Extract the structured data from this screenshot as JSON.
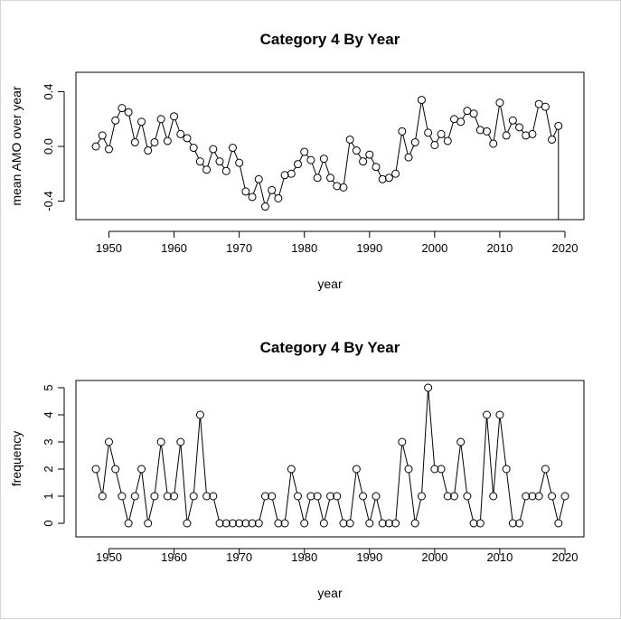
{
  "chart_data": [
    {
      "type": "line",
      "title": "Category 4 By Year",
      "xlabel": "year",
      "ylabel": "mean AMO over year",
      "xlim": [
        1948,
        2019
      ],
      "ylim": [
        -0.45,
        0.35
      ],
      "xticks": [
        "1950",
        "1960",
        "1970",
        "1980",
        "1990",
        "2000",
        "2010",
        "2020"
      ],
      "yticks": [
        "-0.4",
        "0.0",
        "0.4"
      ],
      "x": [
        1948,
        1949,
        1950,
        1951,
        1952,
        1953,
        1954,
        1955,
        1956,
        1957,
        1958,
        1959,
        1960,
        1961,
        1962,
        1963,
        1964,
        1965,
        1966,
        1967,
        1968,
        1969,
        1970,
        1971,
        1972,
        1973,
        1974,
        1975,
        1976,
        1977,
        1978,
        1979,
        1980,
        1981,
        1982,
        1983,
        1984,
        1985,
        1986,
        1987,
        1988,
        1989,
        1990,
        1991,
        1992,
        1993,
        1994,
        1995,
        1996,
        1997,
        1998,
        1999,
        2000,
        2001,
        2002,
        2003,
        2004,
        2005,
        2006,
        2007,
        2008,
        2009,
        2010,
        2011,
        2012,
        2013,
        2014,
        2015,
        2016,
        2017,
        2018,
        2019
      ],
      "y": [
        0.0,
        0.08,
        -0.02,
        0.19,
        0.28,
        0.25,
        0.03,
        0.18,
        -0.03,
        0.03,
        0.2,
        0.04,
        0.22,
        0.09,
        0.06,
        -0.01,
        -0.11,
        -0.17,
        -0.02,
        -0.11,
        -0.18,
        -0.01,
        -0.12,
        -0.33,
        -0.37,
        -0.24,
        -0.44,
        -0.32,
        -0.38,
        -0.21,
        -0.2,
        -0.13,
        -0.04,
        -0.1,
        -0.23,
        -0.09,
        -0.23,
        -0.29,
        -0.3,
        0.05,
        -0.03,
        -0.11,
        -0.06,
        -0.15,
        -0.24,
        -0.23,
        -0.2,
        0.11,
        -0.08,
        0.03,
        0.34,
        0.1,
        0.01,
        0.09,
        0.04,
        0.2,
        0.18,
        0.26,
        0.24,
        0.12,
        0.11,
        0.02,
        0.32,
        0.08,
        0.19,
        0.14,
        0.08,
        0.09,
        0.31,
        0.29,
        0.05,
        0.15
      ],
      "vertical_drop_at": 2019
    },
    {
      "type": "line",
      "title": "Category 4 By Year",
      "xlabel": "year",
      "ylabel": "frequency",
      "xlim": [
        1948,
        2020
      ],
      "ylim": [
        0,
        5
      ],
      "xticks": [
        "1950",
        "1960",
        "1970",
        "1980",
        "1990",
        "2000",
        "2010",
        "2020"
      ],
      "yticks": [
        "0",
        "1",
        "2",
        "3",
        "4",
        "5"
      ],
      "x": [
        1948,
        1949,
        1950,
        1951,
        1952,
        1953,
        1954,
        1955,
        1956,
        1957,
        1958,
        1959,
        1960,
        1961,
        1962,
        1963,
        1964,
        1965,
        1966,
        1967,
        1968,
        1969,
        1970,
        1971,
        1972,
        1973,
        1974,
        1975,
        1976,
        1977,
        1978,
        1979,
        1980,
        1981,
        1982,
        1983,
        1984,
        1985,
        1986,
        1987,
        1988,
        1989,
        1990,
        1991,
        1992,
        1993,
        1994,
        1995,
        1996,
        1997,
        1998,
        1999,
        2000,
        2001,
        2002,
        2003,
        2004,
        2005,
        2006,
        2007,
        2008,
        2009,
        2010,
        2011,
        2012,
        2013,
        2014,
        2015,
        2016,
        2017,
        2018,
        2019,
        2020
      ],
      "y": [
        2,
        1,
        3,
        2,
        1,
        0,
        1,
        2,
        0,
        1,
        3,
        1,
        1,
        3,
        0,
        1,
        4,
        1,
        1,
        0,
        0,
        0,
        0,
        0,
        0,
        0,
        1,
        1,
        0,
        0,
        2,
        1,
        0,
        1,
        1,
        0,
        1,
        1,
        0,
        0,
        2,
        1,
        0,
        1,
        0,
        0,
        0,
        3,
        2,
        0,
        1,
        5,
        2,
        2,
        1,
        1,
        3,
        1,
        0,
        0,
        4,
        1,
        4,
        2,
        0,
        0,
        1,
        1,
        1,
        2,
        1,
        0,
        1
      ]
    }
  ]
}
